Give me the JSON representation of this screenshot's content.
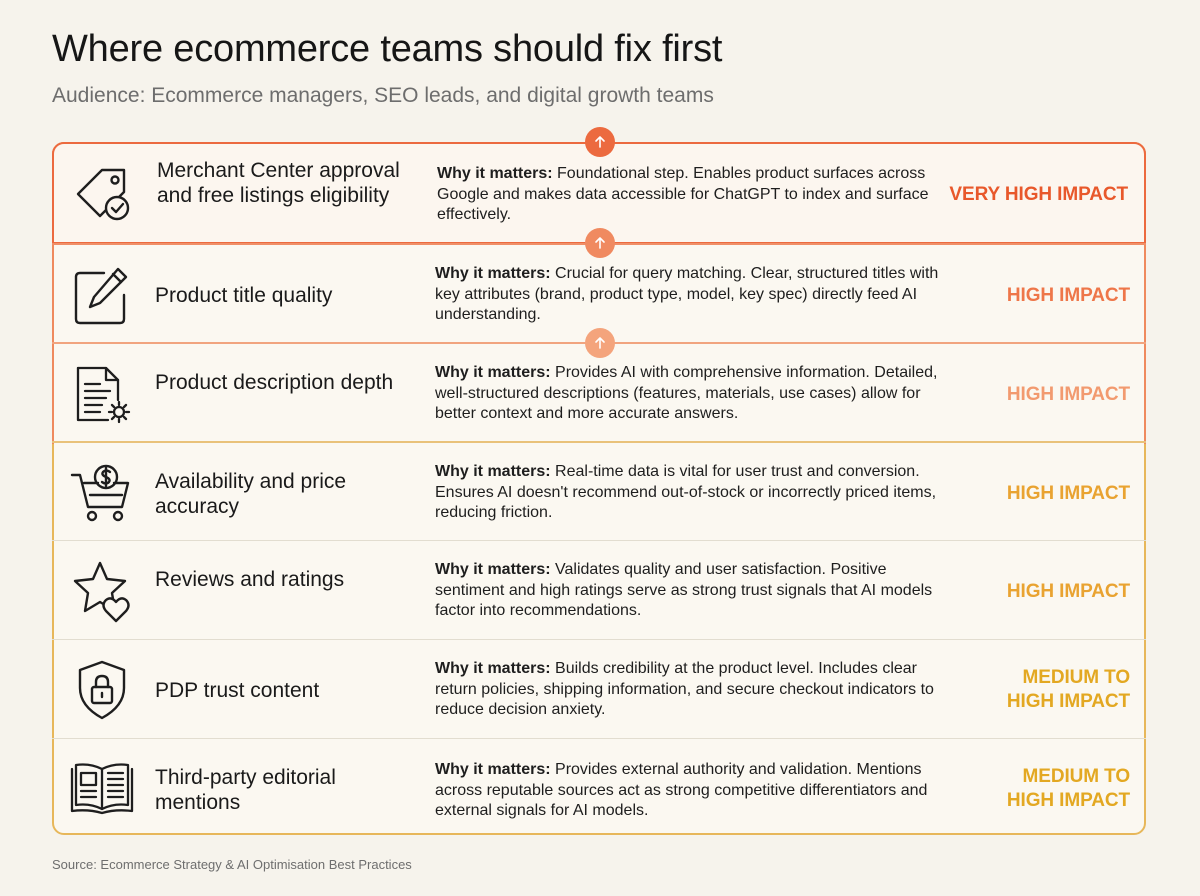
{
  "header": {
    "title": "Where ecommerce teams should fix first",
    "subtitle": "Audience: Ecommerce managers, SEO leads, and digital growth teams"
  },
  "colors": {
    "very_high": "#e8582b",
    "high_orange": "#ee7649",
    "high_light": "#f29a6f",
    "high_gold": "#e9a331",
    "medium": "#e3a822"
  },
  "why_label": "Why it matters:",
  "rows": [
    {
      "icon": "tag-check-icon",
      "name": "Merchant Center approval and free listings eligibility",
      "why": "Foundational step. Enables product surfaces across Google and makes data accessible for ChatGPT to index and surface effectively.",
      "impact": "VERY HIGH IMPACT"
    },
    {
      "icon": "edit-icon",
      "name": "Product title quality",
      "why": "Crucial for query matching. Clear, structured titles with key attributes (brand, product type, model, key spec) directly feed AI understanding.",
      "impact": "HIGH IMPACT"
    },
    {
      "icon": "document-gear-icon",
      "name": "Product description depth",
      "why": "Provides AI with comprehensive information. Detailed, well-structured descriptions (features, materials, use cases) allow for better context and more accurate answers.",
      "impact": "HIGH IMPACT"
    },
    {
      "icon": "cart-dollar-icon",
      "name": "Availability and price accuracy",
      "why": "Real-time data is vital for user trust and conversion. Ensures AI doesn't recommend out-of-stock or incorrectly priced items, reducing friction.",
      "impact": "HIGH IMPACT"
    },
    {
      "icon": "star-heart-icon",
      "name": "Reviews and ratings",
      "why": "Validates quality and user satisfaction. Positive sentiment and high ratings serve as strong trust signals that AI models factor into recommendations.",
      "impact": "HIGH IMPACT"
    },
    {
      "icon": "shield-lock-icon",
      "name": "PDP trust content",
      "why": "Builds credibility at the product level. Includes clear return policies, shipping information, and secure checkout indicators to reduce decision anxiety.",
      "impact_line1": "MEDIUM TO",
      "impact_line2": "HIGH IMPACT"
    },
    {
      "icon": "open-book-icon",
      "name": "Third-party editorial mentions",
      "why": "Provides external authority and validation. Mentions across reputable sources act as strong competitive differentiators and external signals for AI models.",
      "impact_line1": "MEDIUM TO",
      "impact_line2": "HIGH IMPACT"
    }
  ],
  "source": "Source: Ecommerce Strategy & AI Optimisation Best Practices"
}
